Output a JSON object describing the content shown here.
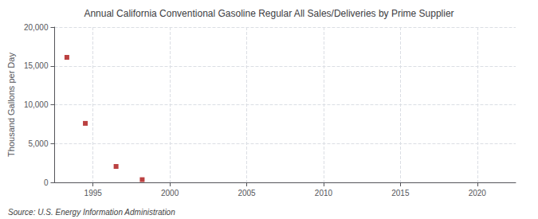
{
  "chart_data": {
    "type": "scatter",
    "title": "Annual California Conventional Gasoline Regular All Sales/Deliveries by Prime Supplier",
    "ylabel": "Thousand Gallons per Day",
    "annotations": [
      "Source: U.S. Energy Information Administration"
    ],
    "x": [
      1993.3,
      1994.5,
      1996.5,
      1998.2
    ],
    "values": [
      16100,
      7600,
      2050,
      350
    ],
    "color": "#aa1111",
    "marker": "square",
    "xlim": [
      1992.5,
      2022.5
    ],
    "ylim": [
      0,
      20000
    ],
    "xticks": [
      1995,
      2000,
      2005,
      2010,
      2015,
      2020
    ],
    "yticks": [
      0,
      {
        "value": 5000,
        "label": "5,000"
      },
      {
        "value": 10000,
        "label": "10,000"
      },
      {
        "value": 15000,
        "label": "15,000"
      },
      {
        "value": 20000,
        "label": "20,000"
      }
    ],
    "grid": true
  }
}
